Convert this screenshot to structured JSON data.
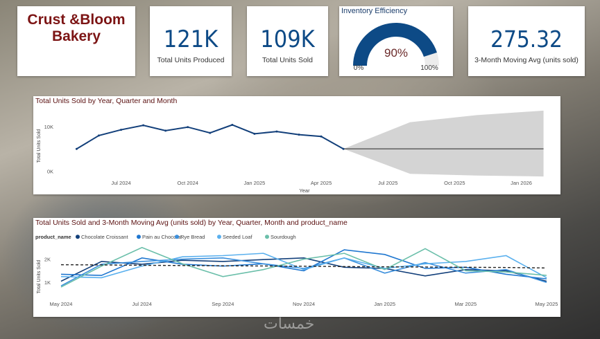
{
  "brand": {
    "line1": "Crust &Bloom",
    "line2": "Bakery"
  },
  "kpis": [
    {
      "value": "121K",
      "label": "Total Units Produced"
    },
    {
      "value": "109K",
      "label": "Total Units Sold"
    },
    {
      "value": "275.32",
      "label": "3-Month Moving Avg (units sold)"
    }
  ],
  "gauge": {
    "title": "Inventory Efficiency",
    "value_label": "90%",
    "value": 0.9,
    "min_label": "0%",
    "max_label": "100%",
    "fill_color": "#0d4a86",
    "track_color": "#ececec"
  },
  "watermark": "خمسات",
  "chart_data": [
    {
      "type": "line",
      "title": "Total Units Sold by Year, Quarter and Month",
      "xlabel": "Year",
      "ylabel": "Total Units Sold",
      "x_tick_labels": [
        "Jul 2024",
        "Oct 2024",
        "Jan 2025",
        "Apr 2025",
        "Jul 2025",
        "Oct 2025",
        "Jan 2026"
      ],
      "y_tick_labels": [
        "10K",
        "0K"
      ],
      "y_ticks": [
        10000,
        0
      ],
      "ylim": [
        -1500,
        12500
      ],
      "x": [
        "2024-05",
        "2024-06",
        "2024-07",
        "2024-08",
        "2024-09",
        "2024-10",
        "2024-11",
        "2024-12",
        "2025-01",
        "2025-02",
        "2025-03",
        "2025-04",
        "2025-05"
      ],
      "series": [
        {
          "values": [
            5000,
            8000,
            9300,
            10300,
            9100,
            9900,
            8600,
            10400,
            8400,
            8900,
            8200,
            7800,
            5000
          ],
          "color": "#123f7a"
        }
      ],
      "forecast": {
        "x": [
          "2025-05",
          "2025-08",
          "2025-11",
          "2026-02"
        ],
        "values": [
          5000,
          5000,
          5000,
          5000
        ],
        "upper": [
          5000,
          11000,
          12600,
          13600
        ],
        "lower": [
          5000,
          -600,
          -1000,
          -1200
        ],
        "line_color": "#666666",
        "band_color": "#d4d4d4"
      },
      "grid": false,
      "legend": "none"
    },
    {
      "type": "line",
      "title": "Total Units Sold and 3-Month Moving Avg (units sold) by Year, Quarter, Month and product_name",
      "legend_title": "product_name",
      "legend": "top-left",
      "xlabel": "",
      "ylabel": "Total Units Sold",
      "x_tick_labels": [
        "May 2024",
        "Jul 2024",
        "Sep 2024",
        "Nov 2024",
        "Jan 2025",
        "Mar 2025",
        "May 2025"
      ],
      "y_tick_labels": [
        "2K",
        "1K"
      ],
      "y_ticks": [
        2000,
        1000
      ],
      "ylim": [
        500,
        2700
      ],
      "x": [
        "2024-05",
        "2024-06",
        "2024-07",
        "2024-08",
        "2024-09",
        "2024-10",
        "2024-11",
        "2024-12",
        "2025-01",
        "2025-02",
        "2025-03",
        "2025-04",
        "2025-05"
      ],
      "series": [
        {
          "name": "Chocolate Croissant",
          "color": "#123f7a",
          "values": [
            1050,
            1900,
            1780,
            1950,
            1900,
            1980,
            2050,
            1650,
            1600,
            1280,
            1550,
            1500,
            1050
          ]
        },
        {
          "name": "Pain au Chocolat",
          "color": "#1f77d0",
          "values": [
            1350,
            1300,
            2050,
            1780,
            1700,
            1800,
            1500,
            2400,
            2200,
            1600,
            1650,
            1350,
            1150
          ]
        },
        {
          "name": "Rye Bread",
          "color": "#3b8fdc",
          "values": [
            850,
            1780,
            1900,
            2000,
            2050,
            1800,
            1600,
            2050,
            1400,
            1850,
            1400,
            1550,
            1000
          ]
        },
        {
          "name": "Seeded Loaf",
          "color": "#5ab0ee",
          "values": [
            1250,
            1200,
            1700,
            2100,
            2150,
            2250,
            1550,
            2050,
            1600,
            1800,
            1900,
            2150,
            1200
          ]
        },
        {
          "name": "Sourdough",
          "color": "#6bbfaa",
          "values": [
            800,
            1700,
            2500,
            1800,
            1250,
            1550,
            2000,
            2250,
            1550,
            2450,
            1500,
            1450,
            1300
          ]
        }
      ],
      "moving_avg": {
        "values": [
          1760,
          1750,
          1735,
          1725,
          1715,
          1705,
          1695,
          1680,
          1670,
          1660,
          1650,
          1640,
          1620
        ],
        "color": "#222222",
        "style": "dashed"
      },
      "grid": false
    }
  ]
}
